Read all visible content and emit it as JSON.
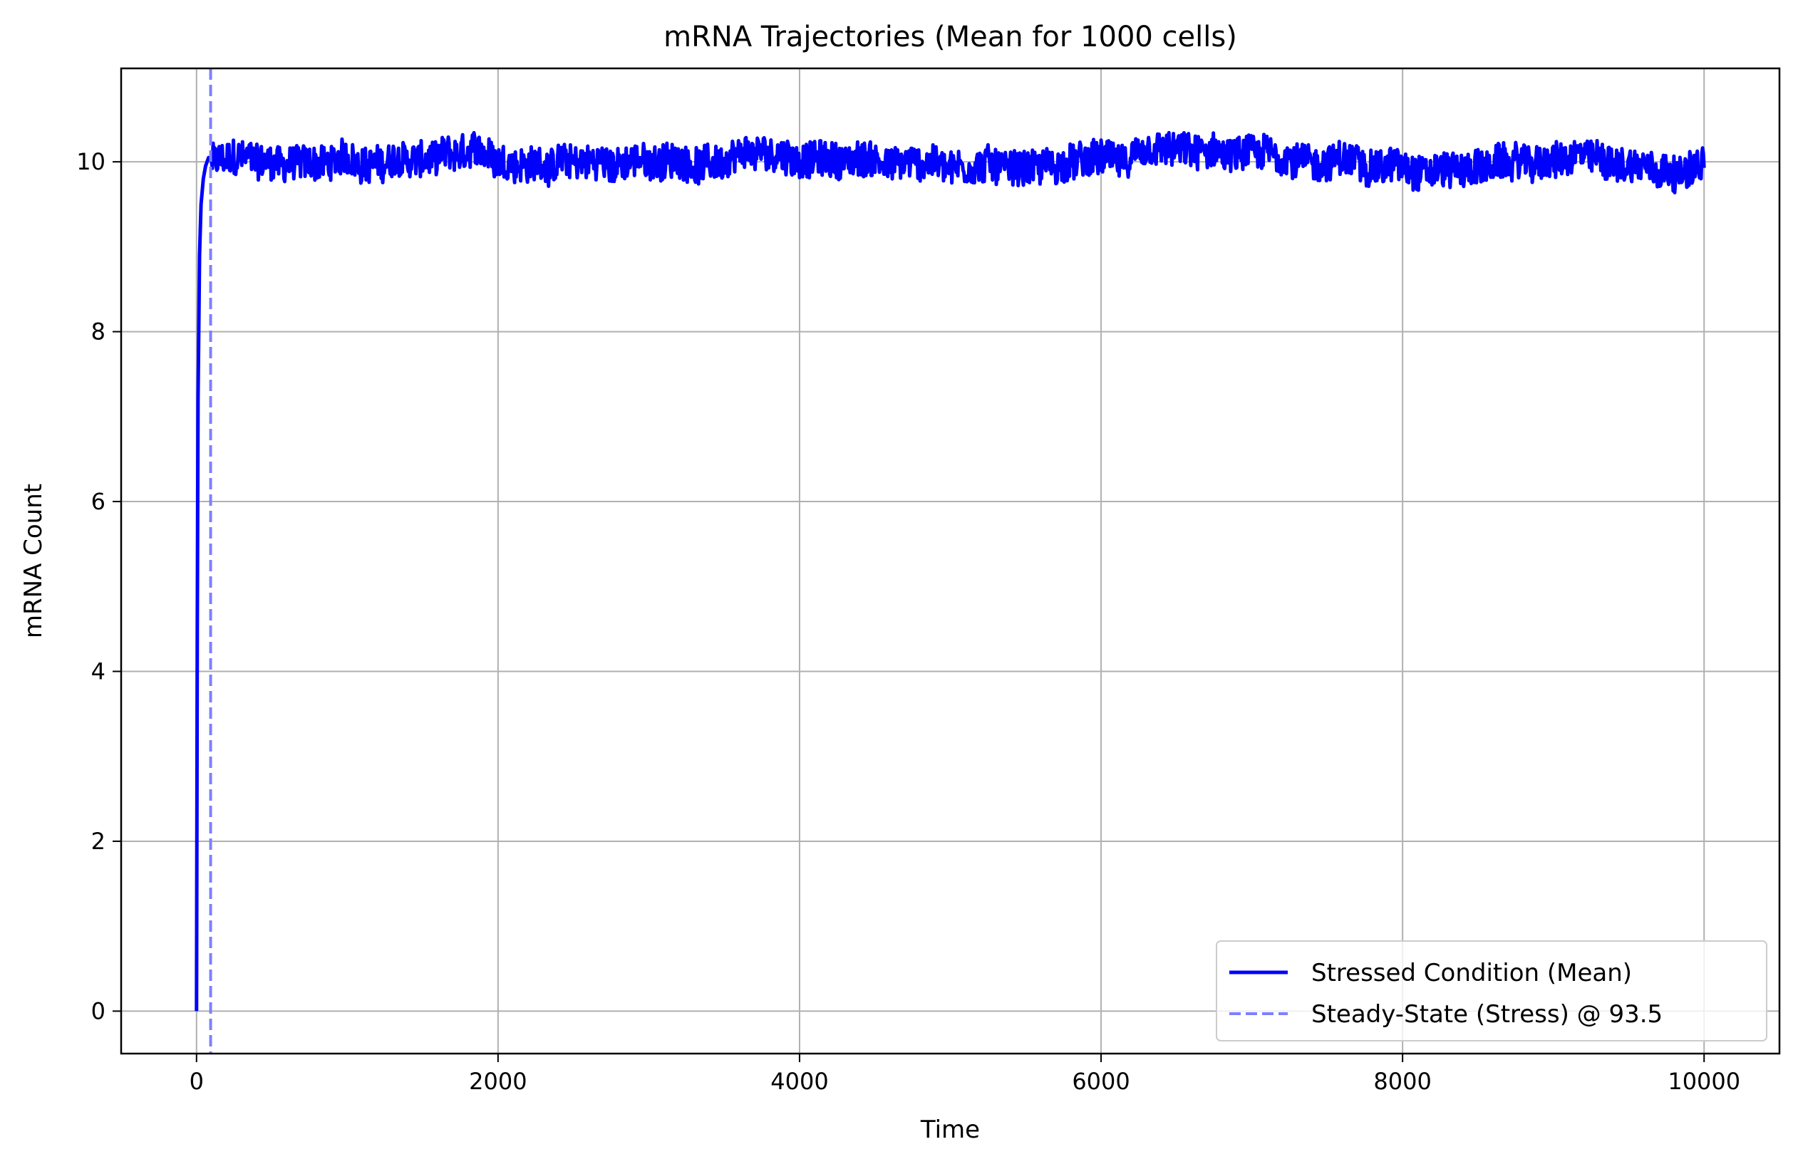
{
  "chart_data": {
    "type": "line",
    "title": "mRNA Trajectories (Mean for 1000 cells)",
    "xlabel": "Time",
    "ylabel": "mRNA Count",
    "xlim": [
      -500,
      10500
    ],
    "ylim": [
      -0.5,
      11.1
    ],
    "xticks": [
      0,
      2000,
      4000,
      6000,
      8000,
      10000
    ],
    "xtick_labels": [
      "0",
      "2000",
      "4000",
      "6000",
      "8000",
      "10000"
    ],
    "yticks": [
      0,
      2,
      4,
      6,
      8,
      10
    ],
    "ytick_labels": [
      "0",
      "2",
      "4",
      "6",
      "8",
      "10"
    ],
    "grid": true,
    "legend_position": "lower-right",
    "series": [
      {
        "name": "Stressed Condition (Mean)",
        "color": "#0000ff",
        "style": "solid",
        "rise": {
          "x": [
            0,
            5,
            10,
            20,
            30,
            45,
            60,
            80,
            100
          ],
          "y": [
            0,
            4.5,
            7.2,
            8.9,
            9.5,
            9.8,
            9.95,
            10.05,
            10.0
          ]
        },
        "steady_state": {
          "x_start": 100,
          "x_end": 10000,
          "mean": 10.0,
          "min": 9.5,
          "max": 10.55
        }
      }
    ],
    "reference_lines": [
      {
        "name": "Steady-State (Stress) @ 93.5",
        "orientation": "vertical",
        "x": 93.5,
        "color": "#7f7fff",
        "style": "dashed"
      }
    ]
  }
}
